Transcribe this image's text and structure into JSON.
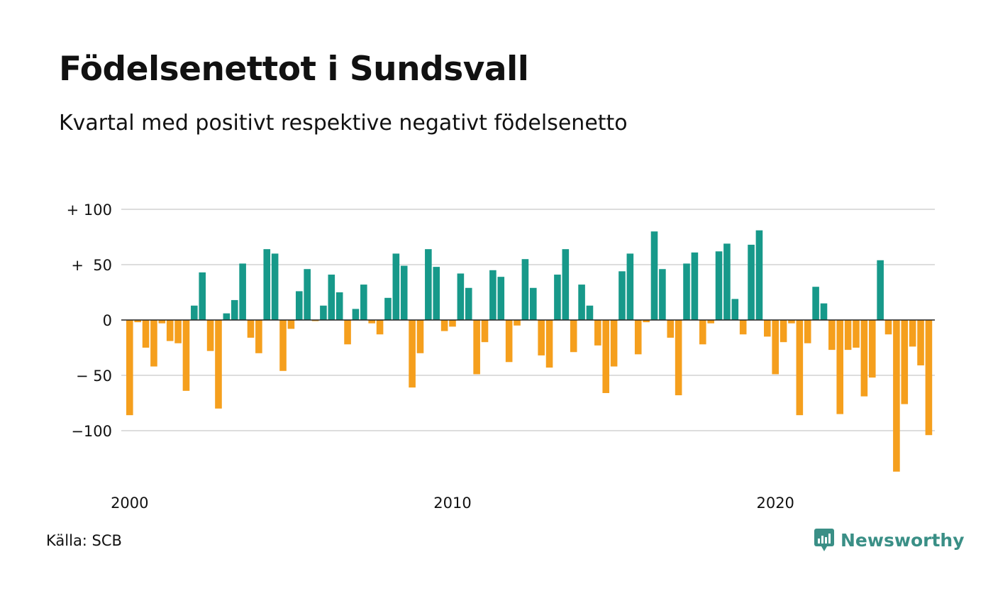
{
  "title": "Födelsenettot i Sundsvall",
  "subtitle": "Kvartal med positivt respektive negativt födelsenetto",
  "source": "Källa: SCB",
  "brand": "Newsworthy",
  "colors": {
    "positive": "#17998a",
    "negative": "#f59f1d",
    "grid": "#dddddd",
    "brand": "#3a8f86"
  },
  "chart_data": {
    "type": "bar",
    "grid": true,
    "ylim": [
      -140,
      100
    ],
    "yticks": [
      {
        "value": 100,
        "label": "+ 100"
      },
      {
        "value": 50,
        "label": "+  50"
      },
      {
        "value": 0,
        "label": "0"
      },
      {
        "value": -50,
        "label": "− 50"
      },
      {
        "value": -100,
        "label": "−100"
      }
    ],
    "xticks": [
      {
        "year": 2000,
        "label": "2000"
      },
      {
        "year": 2010,
        "label": "2010"
      },
      {
        "year": 2020,
        "label": "2020"
      }
    ],
    "first_period": "2000 Q1",
    "values": [
      -86,
      -2,
      -25,
      -42,
      -3,
      -19,
      -21,
      -64,
      13,
      43,
      -28,
      -80,
      6,
      18,
      51,
      -16,
      -30,
      64,
      60,
      -46,
      -8,
      26,
      46,
      -1,
      13,
      41,
      25,
      -22,
      10,
      32,
      -3,
      -13,
      20,
      60,
      49,
      -61,
      -30,
      64,
      48,
      -10,
      -6,
      42,
      29,
      -49,
      -20,
      45,
      39,
      -38,
      -5,
      55,
      29,
      -32,
      -43,
      41,
      64,
      -29,
      32,
      13,
      -23,
      -66,
      -42,
      44,
      60,
      -31,
      -2,
      80,
      46,
      -16,
      -68,
      51,
      61,
      -22,
      -3,
      62,
      69,
      19,
      -13,
      68,
      81,
      -15,
      -49,
      -20,
      -3,
      -86,
      -21,
      30,
      15,
      -27,
      -85,
      -27,
      -25,
      -69,
      -52,
      54,
      -13,
      -137,
      -76,
      -24,
      -41,
      -104
    ]
  }
}
